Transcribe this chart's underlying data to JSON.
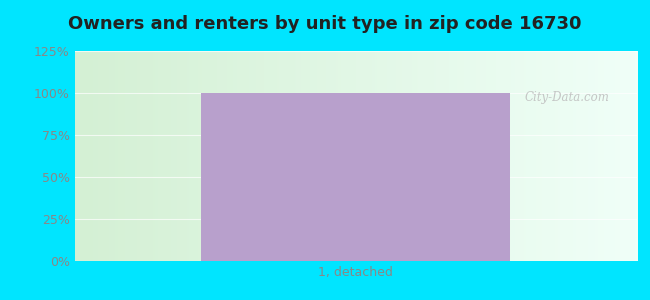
{
  "title": "Owners and renters by unit type in zip code 16730",
  "categories": [
    "1, detached"
  ],
  "bar_value": 100,
  "bar_color": "#b8a0cc",
  "ylim": [
    0,
    125
  ],
  "yticks": [
    0,
    25,
    50,
    75,
    100,
    125
  ],
  "ytick_labels": [
    "0%",
    "25%",
    "50%",
    "75%",
    "100%",
    "125%"
  ],
  "title_fontsize": 13,
  "tick_fontsize": 9,
  "bg_outer": "#00e5ff",
  "watermark": "City-Data.com",
  "bar_width": 0.55,
  "xlim": [
    -0.5,
    0.5
  ],
  "grid_color": "#ddeedf",
  "tick_color": "#888888"
}
